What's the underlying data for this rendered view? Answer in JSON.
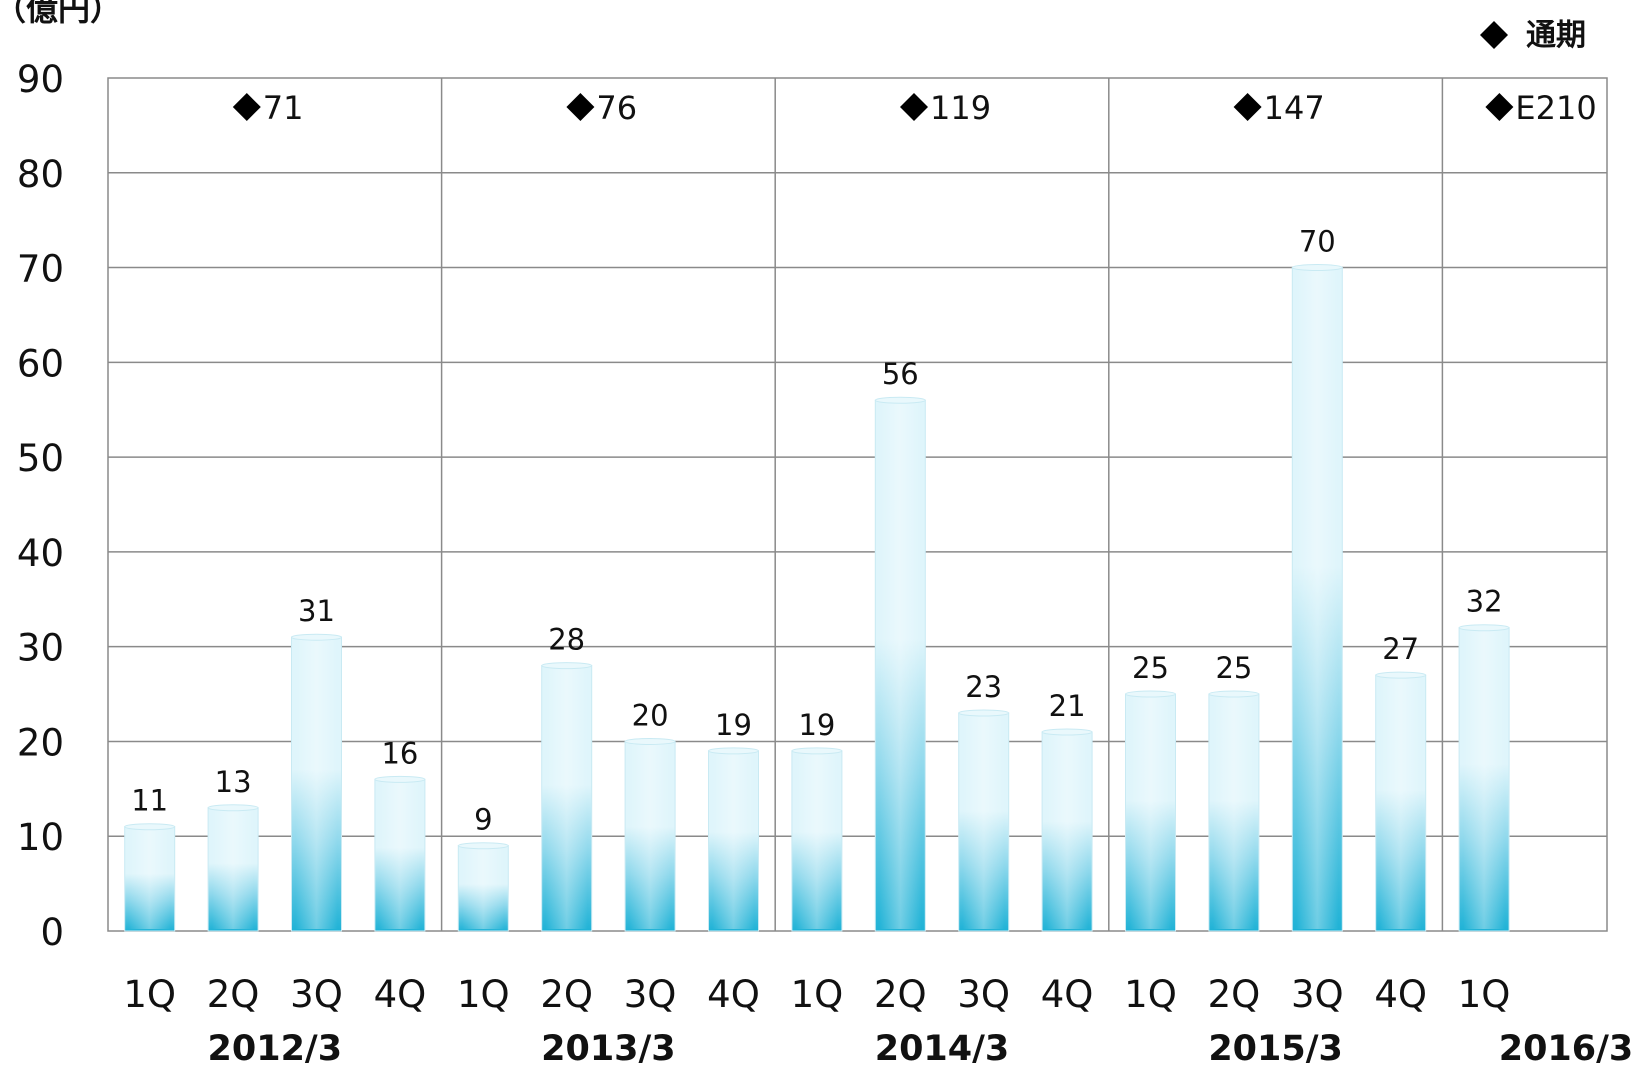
{
  "chart_data": {
    "type": "bar",
    "unit_label": "（億円）",
    "legend": {
      "label": "通期",
      "placement": "top-right"
    },
    "ylim": [
      0,
      90
    ],
    "yticks": [
      0,
      10,
      20,
      30,
      40,
      50,
      60,
      70,
      80,
      90
    ],
    "grid": true,
    "groups": [
      {
        "label": "2012/3",
        "annual_total": "71",
        "quarters": [
          "1Q",
          "2Q",
          "3Q",
          "4Q"
        ],
        "values": [
          11,
          13,
          31,
          16
        ]
      },
      {
        "label": "2013/3",
        "annual_total": "76",
        "quarters": [
          "1Q",
          "2Q",
          "3Q",
          "4Q"
        ],
        "values": [
          9,
          28,
          20,
          19
        ]
      },
      {
        "label": "2014/3",
        "annual_total": "119",
        "quarters": [
          "1Q",
          "2Q",
          "3Q",
          "4Q"
        ],
        "values": [
          19,
          56,
          23,
          21
        ]
      },
      {
        "label": "2015/3",
        "annual_total": "147",
        "quarters": [
          "1Q",
          "2Q",
          "3Q",
          "4Q"
        ],
        "values": [
          25,
          25,
          70,
          27
        ]
      },
      {
        "label": "2016/3",
        "annual_total": "E210",
        "quarters": [
          "1Q"
        ],
        "values": [
          32
        ]
      }
    ],
    "colors": {
      "bar_light": "#dff5fb",
      "bar_dark": "#1fb2d6",
      "grid": "#8a8a8a",
      "marker": "#000000"
    }
  }
}
